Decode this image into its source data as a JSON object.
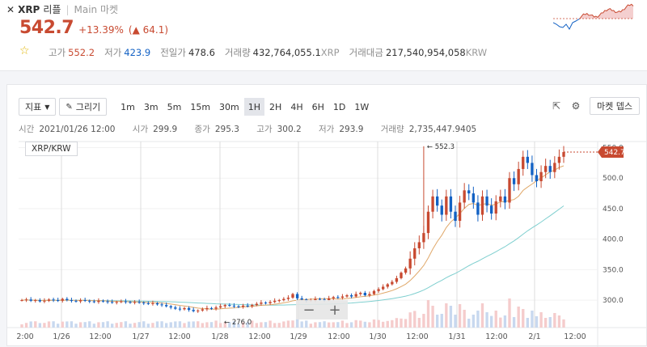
{
  "header": {
    "close_icon": "✕",
    "symbol": "XRP",
    "name_kr": "리플",
    "market": "Main 마켓",
    "price": "542.7",
    "change_pct": "+13.39%",
    "change_abs": "▲ 64.1",
    "stats": [
      {
        "label": "고가",
        "value": "552.2",
        "kind": "hi"
      },
      {
        "label": "저가",
        "value": "423.9",
        "kind": "lo"
      },
      {
        "label": "전일가",
        "value": "478.6",
        "kind": "n"
      },
      {
        "label": "거래량",
        "value": "432,764,055.1",
        "unit": "XRP",
        "kind": "n"
      },
      {
        "label": "거래대금",
        "value": "217,540,954,058",
        "unit": "KRW",
        "kind": "n"
      }
    ]
  },
  "toolbar": {
    "indicator_label": "지표",
    "draw_label": "그리기",
    "timeframes": [
      "1m",
      "3m",
      "5m",
      "15m",
      "30m",
      "1H",
      "2H",
      "4H",
      "6H",
      "1D",
      "1W"
    ],
    "active_timeframe": "1H",
    "depth_label": "마켓 뎁스"
  },
  "ohlc": {
    "time_label": "시간",
    "time_value": "2021/01/26 12:00",
    "open_label": "시가",
    "open_value": "299.9",
    "close_label": "종가",
    "close_value": "295.3",
    "high_label": "고가",
    "high_value": "300.2",
    "low_label": "저가",
    "low_value": "293.9",
    "vol_label": "거래량",
    "vol_value": "2,735,447.9405"
  },
  "pair_label": "XRP/KRW",
  "zoom": {
    "minus": "−",
    "plus": "+"
  },
  "chart_data": {
    "type": "candlestick",
    "y_ticks": [
      300.0,
      350.0,
      400.0,
      450.0,
      500.0,
      550.0
    ],
    "y_tick_labels": [
      "300.0",
      "350.0",
      "400.0",
      "450.0",
      "500.0",
      "550.0"
    ],
    "x_labels": [
      "2:00",
      "1/26",
      "12:00",
      "1/27",
      "12:00",
      "1/28",
      "12:00",
      "1/29",
      "12:00",
      "1/30",
      "12:00",
      "1/31",
      "12:00",
      "2/1",
      "12:00"
    ],
    "current_price_label": "542.7",
    "max_marker": "← 552.3",
    "min_marker": "← 276.0",
    "ylim": [
      255,
      560
    ],
    "close_series": [
      300,
      301,
      299,
      300,
      298,
      299,
      301,
      300,
      299,
      302,
      300,
      299,
      298,
      300,
      299,
      298,
      297,
      299,
      298,
      297,
      296,
      297,
      298,
      297,
      296,
      297,
      296,
      295,
      294,
      295,
      293,
      292,
      290,
      288,
      286,
      285,
      287,
      284,
      282,
      283,
      285,
      287,
      286,
      288,
      290,
      292,
      291,
      290,
      289,
      291,
      290,
      292,
      294,
      296,
      295,
      297,
      299,
      300,
      302,
      304,
      310,
      303,
      301,
      299,
      300,
      302,
      301,
      300,
      303,
      305,
      304,
      306,
      308,
      306,
      310,
      312,
      308,
      310,
      315,
      318,
      322,
      326,
      330,
      336,
      345,
      352,
      368,
      385,
      395,
      410,
      445,
      470,
      455,
      440,
      470,
      445,
      430,
      460,
      480,
      475,
      460,
      440,
      470,
      455,
      442,
      462,
      470,
      460,
      500,
      490,
      515,
      535,
      525,
      505,
      495,
      510,
      520,
      510,
      525,
      535,
      542.7
    ]
  },
  "colors": {
    "up": "#c84a31",
    "down": "#1261c4",
    "ma_short": "#e0a86a",
    "ma_long": "#7fcfcf"
  }
}
